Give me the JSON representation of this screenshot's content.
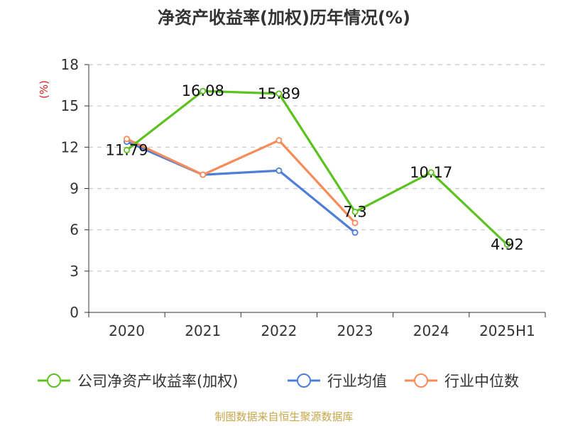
{
  "chart_data": {
    "type": "line",
    "title": "净资产收益率(加权)历年情况(%)",
    "ylabel": "(%)",
    "categories": [
      "2020",
      "2021",
      "2022",
      "2023",
      "2024",
      "2025H1"
    ],
    "ylim": [
      0,
      18
    ],
    "yticks": [
      0,
      3,
      6,
      9,
      12,
      15,
      18
    ],
    "grid": true,
    "legend_position": "bottom",
    "series": [
      {
        "name": "公司净资产收益率(加权)",
        "color": "#5cc21f",
        "values": [
          11.79,
          16.08,
          15.89,
          7.3,
          10.17,
          4.92
        ],
        "labels": [
          "11.79",
          "16.08",
          "15.89",
          "7.3",
          "10.17",
          "4.92"
        ]
      },
      {
        "name": "行业均值",
        "color": "#4f7ed8",
        "values": [
          12.4,
          10.0,
          10.3,
          5.8,
          null,
          null
        ]
      },
      {
        "name": "行业中位数",
        "color": "#f78b5a",
        "values": [
          12.6,
          10.0,
          12.5,
          6.5,
          null,
          null
        ]
      }
    ]
  },
  "source": "制图数据来自恒生聚源数据库"
}
